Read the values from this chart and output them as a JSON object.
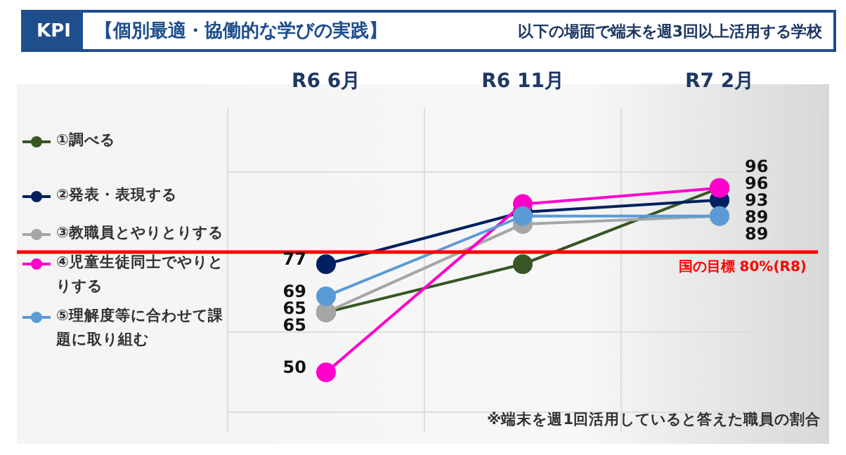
{
  "chart_data": {
    "type": "line",
    "title": "KPI",
    "subtitle": "【個別最適・協働的な学びの実践】",
    "annotations": [
      "以下の場面で端末を週3回以上活用する学校",
      "※端末を週1回活用していると答えた職員の割合"
    ],
    "categories": [
      "R6 6月",
      "R6 11月",
      "R7 2月"
    ],
    "series": [
      {
        "name": "①調べる",
        "color": "#375623",
        "values": [
          65,
          77,
          96
        ],
        "value_labels": [
          "65",
          null,
          "96"
        ]
      },
      {
        "name": "②発表・表現する",
        "color": "#002060",
        "values": [
          77,
          90,
          93
        ],
        "value_labels": [
          "77",
          null,
          "93"
        ]
      },
      {
        "name": "③教職員とやりとりする",
        "color": "#a6a6a6",
        "values": [
          65,
          87,
          89
        ],
        "value_labels": [
          "65",
          null,
          "89"
        ]
      },
      {
        "name": "④児童生徒同士でやりとりする",
        "color": "#ff00cc",
        "values": [
          50,
          92,
          96
        ],
        "value_labels": [
          "50",
          null,
          "96"
        ]
      },
      {
        "name": "⑤理解度等に合わせて課題に取り組む",
        "color": "#5b9bd5",
        "values": [
          69,
          89,
          89
        ],
        "value_labels": [
          "69",
          null,
          "89"
        ]
      }
    ],
    "ylim": [
      35,
      116
    ],
    "yticks": [
      {
        "value": 40,
        "label": null
      },
      {
        "value": 60,
        "label": null
      },
      {
        "value": 100,
        "label": null
      }
    ],
    "tick_labels": "x",
    "grid": true,
    "legend": "left",
    "marker": "circle",
    "line_style": "solid",
    "ref_lines": [
      {
        "axis": "y",
        "value": 80,
        "label": "国の目標 80%(R8)",
        "color": "#ff0000"
      }
    ]
  }
}
